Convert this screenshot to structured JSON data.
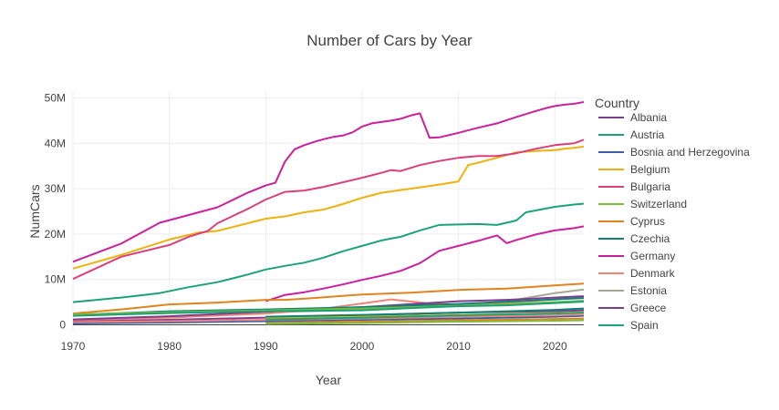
{
  "chart_data": {
    "type": "line",
    "title": "Number of Cars by Year",
    "xlabel": "Year",
    "ylabel": "NumCars",
    "xlim": [
      1970,
      2023
    ],
    "ylim": [
      -1500000,
      51500000
    ],
    "x_ticks": [
      1970,
      1980,
      1990,
      2000,
      2010,
      2020
    ],
    "y_ticks": [
      {
        "v": 0,
        "label": "0"
      },
      {
        "v": 10000000,
        "label": "10M"
      },
      {
        "v": 20000000,
        "label": "20M"
      },
      {
        "v": 30000000,
        "label": "30M"
      },
      {
        "v": 40000000,
        "label": "40M"
      },
      {
        "v": 50000000,
        "label": "50M"
      }
    ],
    "grid": true,
    "legend_title": "Country",
    "legend_position": "right",
    "legend": [
      {
        "name": "Albania",
        "color": "#7E3C8E"
      },
      {
        "name": "Austria",
        "color": "#1BA27A"
      },
      {
        "name": "Bosnia and Herzegovina",
        "color": "#3A5FA8"
      },
      {
        "name": "Belgium",
        "color": "#EDB20E"
      },
      {
        "name": "Bulgaria",
        "color": "#DB3F7B"
      },
      {
        "name": "Switzerland",
        "color": "#7DBB3C"
      },
      {
        "name": "Cyprus",
        "color": "#E1841F"
      },
      {
        "name": "Czechia",
        "color": "#0F8278"
      },
      {
        "name": "Germany",
        "color": "#CC1F9E"
      },
      {
        "name": "Denmark",
        "color": "#EE8577"
      },
      {
        "name": "Estonia",
        "color": "#A5A596"
      },
      {
        "name": "Greece",
        "color": "#7E3C8E"
      },
      {
        "name": "Spain",
        "color": "#1BA27A"
      }
    ],
    "series": [
      {
        "name": "Germany",
        "color": "#CC1F9E",
        "points": [
          [
            1970,
            13900000
          ],
          [
            1975,
            17900000
          ],
          [
            1979,
            22500000
          ],
          [
            1982,
            24200000
          ],
          [
            1985,
            25900000
          ],
          [
            1988,
            29000000
          ],
          [
            1990,
            30700000
          ],
          [
            1991,
            31300000
          ],
          [
            1992,
            36000000
          ],
          [
            1993,
            38700000
          ],
          [
            1994,
            39600000
          ],
          [
            1995,
            40300000
          ],
          [
            1996,
            40900000
          ],
          [
            1997,
            41400000
          ],
          [
            1998,
            41700000
          ],
          [
            1999,
            42400000
          ],
          [
            2000,
            43700000
          ],
          [
            2001,
            44400000
          ],
          [
            2002,
            44700000
          ],
          [
            2003,
            45000000
          ],
          [
            2004,
            45400000
          ],
          [
            2005,
            46100000
          ],
          [
            2006,
            46600000
          ],
          [
            2007,
            41200000
          ],
          [
            2008,
            41300000
          ],
          [
            2010,
            42300000
          ],
          [
            2012,
            43400000
          ],
          [
            2014,
            44400000
          ],
          [
            2016,
            45800000
          ],
          [
            2018,
            47100000
          ],
          [
            2019,
            47700000
          ],
          [
            2020,
            48200000
          ],
          [
            2021,
            48500000
          ],
          [
            2022,
            48700000
          ],
          [
            2023,
            49100000
          ]
        ]
      },
      {
        "name": "Belgium",
        "color": "#EDB20E",
        "points": [
          [
            1970,
            12400000
          ],
          [
            1975,
            15400000
          ],
          [
            1980,
            18800000
          ],
          [
            1983,
            20300000
          ],
          [
            1985,
            20700000
          ],
          [
            1988,
            22300000
          ],
          [
            1990,
            23400000
          ],
          [
            1992,
            23900000
          ],
          [
            1994,
            24800000
          ],
          [
            1996,
            25400000
          ],
          [
            1998,
            26600000
          ],
          [
            2000,
            28000000
          ],
          [
            2002,
            29100000
          ],
          [
            2004,
            29700000
          ],
          [
            2006,
            30300000
          ],
          [
            2008,
            30900000
          ],
          [
            2010,
            31600000
          ],
          [
            2011,
            35200000
          ],
          [
            2012,
            35700000
          ],
          [
            2014,
            36800000
          ],
          [
            2016,
            38000000
          ],
          [
            2018,
            38300000
          ],
          [
            2020,
            38500000
          ],
          [
            2021,
            38800000
          ],
          [
            2022,
            39000000
          ],
          [
            2023,
            39300000
          ]
        ]
      },
      {
        "name": "Bulgaria",
        "color": "#DB3F7B",
        "points": [
          [
            1970,
            10100000
          ],
          [
            1975,
            15000000
          ],
          [
            1980,
            17600000
          ],
          [
            1982,
            19400000
          ],
          [
            1984,
            20700000
          ],
          [
            1985,
            22400000
          ],
          [
            1988,
            25400000
          ],
          [
            1990,
            27600000
          ],
          [
            1992,
            29300000
          ],
          [
            1994,
            29600000
          ],
          [
            1996,
            30400000
          ],
          [
            1998,
            31400000
          ],
          [
            2000,
            32400000
          ],
          [
            2002,
            33500000
          ],
          [
            2003,
            34100000
          ],
          [
            2004,
            33900000
          ],
          [
            2006,
            35200000
          ],
          [
            2008,
            36100000
          ],
          [
            2010,
            36800000
          ],
          [
            2012,
            37200000
          ],
          [
            2014,
            37200000
          ],
          [
            2016,
            37800000
          ],
          [
            2018,
            38800000
          ],
          [
            2020,
            39600000
          ],
          [
            2022,
            40000000
          ],
          [
            2023,
            40800000
          ]
        ]
      },
      {
        "name": "Austria",
        "color": "#1BA27A",
        "points": [
          [
            1970,
            5000000
          ],
          [
            1975,
            6000000
          ],
          [
            1979,
            7000000
          ],
          [
            1982,
            8300000
          ],
          [
            1985,
            9400000
          ],
          [
            1988,
            11000000
          ],
          [
            1990,
            12200000
          ],
          [
            1992,
            13000000
          ],
          [
            1994,
            13700000
          ],
          [
            1996,
            14800000
          ],
          [
            1998,
            16200000
          ],
          [
            2000,
            17400000
          ],
          [
            2002,
            18600000
          ],
          [
            2004,
            19400000
          ],
          [
            2006,
            20800000
          ],
          [
            2008,
            22000000
          ],
          [
            2010,
            22100000
          ],
          [
            2012,
            22200000
          ],
          [
            2014,
            22000000
          ],
          [
            2016,
            23000000
          ],
          [
            2017,
            24800000
          ],
          [
            2018,
            25200000
          ],
          [
            2020,
            26000000
          ],
          [
            2022,
            26500000
          ],
          [
            2023,
            26700000
          ]
        ]
      },
      {
        "name": "Germany",
        "color": "#CC1F9E",
        "points": [
          [
            1990,
            5200000
          ],
          [
            1992,
            6600000
          ],
          [
            1994,
            7200000
          ],
          [
            1996,
            8000000
          ],
          [
            1998,
            8900000
          ],
          [
            2000,
            9900000
          ],
          [
            2002,
            10800000
          ],
          [
            2004,
            11900000
          ],
          [
            2006,
            13600000
          ],
          [
            2008,
            16300000
          ],
          [
            2010,
            17400000
          ],
          [
            2012,
            18500000
          ],
          [
            2014,
            19700000
          ],
          [
            2015,
            18000000
          ],
          [
            2016,
            18700000
          ],
          [
            2018,
            19900000
          ],
          [
            2020,
            20800000
          ],
          [
            2022,
            21300000
          ],
          [
            2023,
            21700000
          ]
        ]
      },
      {
        "name": "Cyprus",
        "color": "#E1841F",
        "points": [
          [
            1970,
            2500000
          ],
          [
            1975,
            3400000
          ],
          [
            1980,
            4500000
          ],
          [
            1985,
            4900000
          ],
          [
            1990,
            5500000
          ],
          [
            1992,
            5500000
          ],
          [
            1995,
            5900000
          ],
          [
            2000,
            6700000
          ],
          [
            2005,
            7100000
          ],
          [
            2010,
            7700000
          ],
          [
            2015,
            8000000
          ],
          [
            2020,
            8700000
          ],
          [
            2023,
            9100000
          ]
        ]
      },
      {
        "name": "Estonia",
        "color": "#A5A596",
        "points": [
          [
            1990,
            2800000
          ],
          [
            2000,
            3300000
          ],
          [
            2005,
            3700000
          ],
          [
            2010,
            4300000
          ],
          [
            2015,
            5200000
          ],
          [
            2020,
            7000000
          ],
          [
            2023,
            7800000
          ]
        ]
      },
      {
        "name": "Denmark",
        "color": "#EE8577",
        "points": [
          [
            1970,
            1000000
          ],
          [
            1980,
            1600000
          ],
          [
            1990,
            2500000
          ],
          [
            1995,
            3300000
          ],
          [
            2000,
            4700000
          ],
          [
            2003,
            5600000
          ],
          [
            2007,
            4700000
          ],
          [
            2010,
            4500000
          ],
          [
            2015,
            4900000
          ],
          [
            2020,
            5600000
          ],
          [
            2023,
            6100000
          ]
        ]
      },
      {
        "name": "Albania",
        "color": "#7E3C8E",
        "points": [
          [
            1970,
            1200000
          ],
          [
            1980,
            1900000
          ],
          [
            1990,
            2900000
          ],
          [
            2000,
            3900000
          ],
          [
            2010,
            5200000
          ],
          [
            2015,
            5500000
          ],
          [
            2020,
            6000000
          ],
          [
            2023,
            6300000
          ]
        ]
      },
      {
        "name": "Czechia",
        "color": "#0F8278",
        "points": [
          [
            1970,
            2200000
          ],
          [
            1980,
            3000000
          ],
          [
            1990,
            3400000
          ],
          [
            2000,
            3900000
          ],
          [
            2010,
            4600000
          ],
          [
            2015,
            5100000
          ],
          [
            2020,
            5600000
          ],
          [
            2023,
            5900000
          ]
        ]
      },
      {
        "name": "Switzerland",
        "color": "#7DBB3C",
        "points": [
          [
            1970,
            2300000
          ],
          [
            1980,
            2800000
          ],
          [
            1990,
            3200000
          ],
          [
            2000,
            3600000
          ],
          [
            2010,
            4200000
          ],
          [
            2015,
            4600000
          ],
          [
            2020,
            5000000
          ],
          [
            2023,
            5300000
          ]
        ]
      },
      {
        "name": "Spain",
        "color": "#1BA27A",
        "points": [
          [
            1970,
            2000000
          ],
          [
            1980,
            2600000
          ],
          [
            1990,
            3000000
          ],
          [
            2000,
            3200000
          ],
          [
            2005,
            3700000
          ],
          [
            2010,
            4100000
          ],
          [
            2015,
            4300000
          ],
          [
            2020,
            4800000
          ],
          [
            2023,
            5100000
          ]
        ]
      },
      {
        "name": "Bosnia and Herzegovina",
        "color": "#3A5FA8",
        "points": [
          [
            1970,
            300000
          ],
          [
            1980,
            500000
          ],
          [
            1990,
            800000
          ],
          [
            2000,
            1100000
          ],
          [
            2010,
            1400000
          ],
          [
            2020,
            1800000
          ],
          [
            2023,
            2000000
          ]
        ]
      },
      {
        "name": "Greece",
        "color": "#7E3C8E",
        "points": [
          [
            1970,
            700000
          ],
          [
            1980,
            1100000
          ],
          [
            1990,
            1600000
          ],
          [
            2000,
            2100000
          ],
          [
            2010,
            2700000
          ],
          [
            2020,
            3000000
          ],
          [
            2023,
            3200000
          ]
        ]
      },
      {
        "name": "Belgium",
        "color": "#EDB20E",
        "points": [
          [
            1990,
            1500000
          ],
          [
            2000,
            1800000
          ],
          [
            2010,
            2200000
          ],
          [
            2020,
            2600000
          ],
          [
            2023,
            2800000
          ]
        ]
      },
      {
        "name": "Cyprus",
        "color": "#E1841F",
        "points": [
          [
            1990,
            400000
          ],
          [
            2000,
            700000
          ],
          [
            2010,
            1000000
          ],
          [
            2020,
            1300000
          ],
          [
            2023,
            1400000
          ]
        ]
      },
      {
        "name": "Czechia",
        "color": "#0F8278",
        "points": [
          [
            1990,
            1800000
          ],
          [
            2000,
            2200000
          ],
          [
            2010,
            2700000
          ],
          [
            2020,
            3300000
          ],
          [
            2023,
            3600000
          ]
        ]
      },
      {
        "name": "Denmark",
        "color": "#EE8577",
        "points": [
          [
            1970,
            600000
          ],
          [
            1980,
            800000
          ],
          [
            1990,
            1100000
          ],
          [
            2000,
            1400000
          ],
          [
            2010,
            1800000
          ],
          [
            2020,
            2100000
          ],
          [
            2023,
            2300000
          ]
        ]
      },
      {
        "name": "Switzerland",
        "color": "#7DBB3C",
        "points": [
          [
            1990,
            200000
          ],
          [
            2000,
            400000
          ],
          [
            2010,
            700000
          ],
          [
            2020,
            900000
          ],
          [
            2023,
            1000000
          ]
        ]
      },
      {
        "name": "Austria",
        "color": "#1BA27A",
        "points": [
          [
            1990,
            1200000
          ],
          [
            2000,
            1600000
          ],
          [
            2010,
            2100000
          ],
          [
            2020,
            2500000
          ],
          [
            2023,
            2700000
          ]
        ]
      }
    ]
  }
}
